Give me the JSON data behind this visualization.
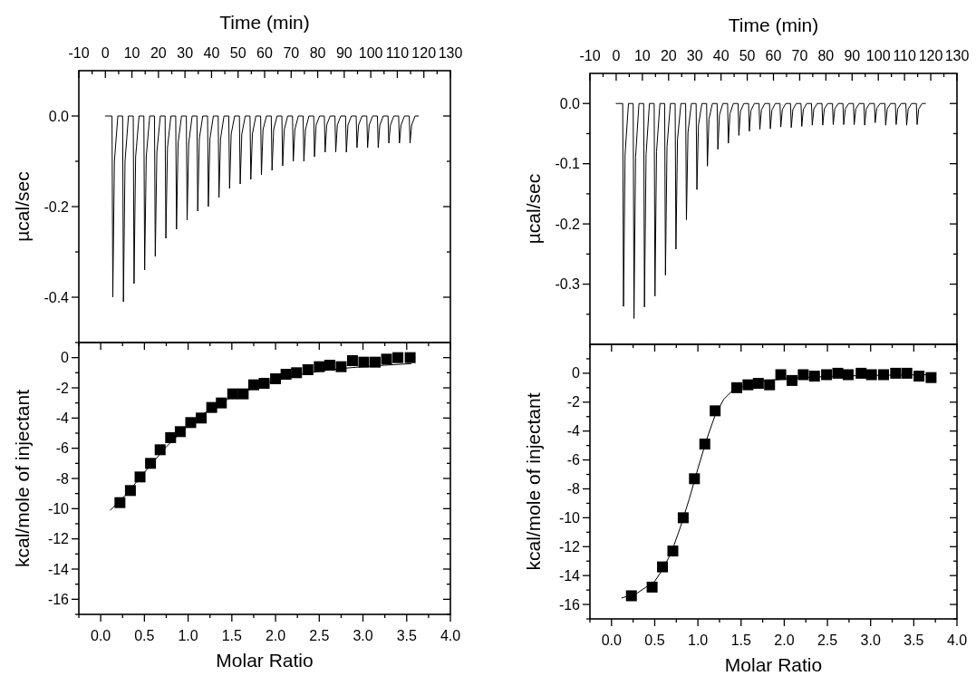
{
  "chart_data": [
    {
      "type": "line",
      "xlabel": "Time (min)",
      "ylabel": "µcal/sec",
      "xlim": [
        -10,
        130
      ],
      "ylim": [
        -0.5,
        0.1
      ],
      "xticks": [
        -10,
        {
          "value": -5,
          "label": null
        },
        0,
        {
          "value": 5,
          "label": null
        },
        10,
        {
          "value": 15,
          "label": null
        },
        20,
        {
          "value": 25,
          "label": null
        },
        30,
        {
          "value": 35,
          "label": null
        },
        40,
        {
          "value": 45,
          "label": null
        },
        50,
        {
          "value": 55,
          "label": null
        },
        60,
        {
          "value": 65,
          "label": null
        },
        70,
        {
          "value": 75,
          "label": null
        },
        80,
        {
          "value": 85,
          "label": null
        },
        90,
        {
          "value": 95,
          "label": null
        },
        100,
        {
          "value": 105,
          "label": null
        },
        110,
        {
          "value": 115,
          "label": null
        },
        120,
        {
          "value": 125,
          "label": null
        },
        130
      ],
      "yticks": [
        {
          "value": -0.5,
          "label": null
        },
        {
          "value": -0.4,
          "label": "-0.4"
        },
        {
          "value": -0.3,
          "label": null
        },
        {
          "value": -0.2,
          "label": "-0.2"
        },
        {
          "value": -0.1,
          "label": null
        },
        {
          "value": 0,
          "label": "0.0"
        }
      ],
      "series": [
        {
          "color": "#000000",
          "x": [
            0,
            2.5,
            2.8,
            3.4,
            4.7,
            6.5,
            6.8,
            7.4,
            8.7,
            10.5,
            10.8,
            11.4,
            12.7,
            14.5,
            14.8,
            15.4,
            16.7,
            18.5,
            18.8,
            19.4,
            20.7,
            22.5,
            22.8,
            23.4,
            24.7,
            26.5,
            26.8,
            27.4,
            28.7,
            30.5,
            30.8,
            31.4,
            32.7,
            34.5,
            34.8,
            35.4,
            36.7,
            38.5,
            38.8,
            39.4,
            40.7,
            42.5,
            42.8,
            43.4,
            44.7,
            46.5,
            46.8,
            47.4,
            48.7,
            50.5,
            50.8,
            51.4,
            52.7,
            54.5,
            54.8,
            55.4,
            56.7,
            58.5,
            58.8,
            59.4,
            60.7,
            62.5,
            62.8,
            63.4,
            64.7,
            66.5,
            66.8,
            67.4,
            68.7,
            70.5,
            70.8,
            71.4,
            72.7,
            74.5,
            74.8,
            75.4,
            76.7,
            78.5,
            78.8,
            79.4,
            80.7,
            82.5,
            82.8,
            83.4,
            84.7,
            86.5,
            86.8,
            87.4,
            88.7,
            90.5,
            90.8,
            91.4,
            92.7,
            94.5,
            94.8,
            95.4,
            96.7,
            98.5,
            98.8,
            99.4,
            100.7,
            102.5,
            102.8,
            103.4,
            104.7,
            106.5,
            106.8,
            107.4,
            108.7,
            110.5,
            110.8,
            111.4,
            112.7,
            114.5,
            114.8,
            115.4,
            116.7,
            118
          ],
          "values": [
            0,
            0,
            -0.4,
            -0.1,
            0,
            0,
            -0.41,
            -0.1,
            0,
            0,
            -0.37,
            -0.09,
            0,
            0,
            -0.34,
            -0.09,
            0,
            0,
            -0.31,
            -0.08,
            0,
            0,
            -0.27,
            -0.07,
            0,
            0,
            -0.25,
            -0.06,
            0,
            0,
            -0.23,
            -0.06,
            0,
            0,
            -0.21,
            -0.05,
            0,
            0,
            -0.2,
            -0.05,
            0,
            0,
            -0.18,
            -0.05,
            0,
            0,
            -0.16,
            -0.04,
            0,
            0,
            -0.15,
            -0.04,
            0,
            0,
            -0.14,
            -0.04,
            0,
            0,
            -0.13,
            -0.03,
            0,
            0,
            -0.12,
            -0.03,
            0,
            0,
            -0.11,
            -0.03,
            0,
            0,
            -0.1,
            -0.03,
            0,
            0,
            -0.1,
            -0.03,
            0,
            0,
            -0.09,
            -0.02,
            0,
            0,
            -0.08,
            -0.02,
            0,
            0,
            -0.08,
            -0.02,
            0,
            0,
            -0.08,
            -0.02,
            0,
            0,
            -0.07,
            -0.02,
            0,
            0,
            -0.07,
            -0.02,
            0,
            0,
            -0.07,
            -0.02,
            0,
            0,
            -0.06,
            -0.02,
            0,
            0,
            -0.06,
            -0.02,
            0,
            0,
            -0.06,
            -0.02,
            0,
            0
          ]
        }
      ]
    },
    {
      "type": "line",
      "xlabel": "Time (min)",
      "ylabel": "µcal/sec",
      "xlim": [
        -10,
        130
      ],
      "ylim": [
        -0.4,
        0.05
      ],
      "xticks": [
        -10,
        {
          "value": -5,
          "label": null
        },
        0,
        {
          "value": 5,
          "label": null
        },
        10,
        {
          "value": 15,
          "label": null
        },
        20,
        {
          "value": 25,
          "label": null
        },
        30,
        {
          "value": 35,
          "label": null
        },
        40,
        {
          "value": 45,
          "label": null
        },
        50,
        {
          "value": 55,
          "label": null
        },
        60,
        {
          "value": 65,
          "label": null
        },
        70,
        {
          "value": 75,
          "label": null
        },
        80,
        {
          "value": 85,
          "label": null
        },
        90,
        {
          "value": 95,
          "label": null
        },
        100,
        {
          "value": 105,
          "label": null
        },
        110,
        {
          "value": 115,
          "label": null
        },
        120,
        {
          "value": 125,
          "label": null
        },
        130
      ],
      "yticks": [
        {
          "value": -0.35,
          "label": null
        },
        {
          "value": -0.3,
          "label": "-0.3"
        },
        {
          "value": -0.25,
          "label": null
        },
        {
          "value": -0.2,
          "label": "-0.2"
        },
        {
          "value": -0.15,
          "label": null
        },
        {
          "value": -0.1,
          "label": "-0.1"
        },
        {
          "value": -0.05,
          "label": null
        },
        {
          "value": 0,
          "label": "0.0"
        }
      ],
      "series": [
        {
          "color": "#000000",
          "x": [
            0,
            2.5,
            2.8,
            3.4,
            4.7,
            6.5,
            6.8,
            7.4,
            8.7,
            10.5,
            10.8,
            11.4,
            12.7,
            14.5,
            14.8,
            15.4,
            16.7,
            18.5,
            18.8,
            19.4,
            20.7,
            22.5,
            22.8,
            23.4,
            24.7,
            26.5,
            26.8,
            27.4,
            28.7,
            30.5,
            30.8,
            31.4,
            32.7,
            34.5,
            34.8,
            35.4,
            36.7,
            38.5,
            38.8,
            39.4,
            40.7,
            42.5,
            42.8,
            43.4,
            44.7,
            46.5,
            46.8,
            47.4,
            48.7,
            50.5,
            50.8,
            51.4,
            52.7,
            54.5,
            54.8,
            55.4,
            56.7,
            58.5,
            58.8,
            59.4,
            60.7,
            62.5,
            62.8,
            63.4,
            64.7,
            66.5,
            66.8,
            67.4,
            68.7,
            70.5,
            70.8,
            71.4,
            72.7,
            74.5,
            74.8,
            75.4,
            76.7,
            78.5,
            78.8,
            79.4,
            80.7,
            82.5,
            82.8,
            83.4,
            84.7,
            86.5,
            86.8,
            87.4,
            88.7,
            90.5,
            90.8,
            91.4,
            92.7,
            94.5,
            94.8,
            95.4,
            96.7,
            98.5,
            98.8,
            99.4,
            100.7,
            102.5,
            102.8,
            103.4,
            104.7,
            106.5,
            106.8,
            107.4,
            108.7,
            110.5,
            110.8,
            111.4,
            112.7,
            114.5,
            114.8,
            115.4,
            116.7,
            118
          ],
          "values": [
            0,
            0,
            -0.337,
            -0.084,
            0,
            0,
            -0.357,
            -0.089,
            0,
            0,
            -0.338,
            -0.085,
            0,
            0,
            -0.32,
            -0.08,
            0,
            0,
            -0.285,
            -0.071,
            0,
            0,
            -0.242,
            -0.06,
            0,
            0,
            -0.193,
            -0.048,
            0,
            0,
            -0.143,
            -0.036,
            0,
            0,
            -0.104,
            -0.026,
            0,
            0,
            -0.076,
            -0.019,
            0,
            0,
            -0.066,
            -0.017,
            0,
            0,
            -0.053,
            -0.013,
            0,
            0,
            -0.046,
            -0.012,
            0,
            0,
            -0.043,
            -0.011,
            0,
            0,
            -0.042,
            -0.011,
            0,
            0,
            -0.039,
            -0.01,
            0,
            0,
            -0.04,
            -0.01,
            0,
            0,
            -0.038,
            -0.01,
            0,
            0,
            -0.036,
            -0.009,
            0,
            0,
            -0.036,
            -0.009,
            0,
            0,
            -0.035,
            -0.009,
            0,
            0,
            -0.035,
            -0.009,
            0,
            0,
            -0.035,
            -0.009,
            0,
            0,
            -0.036,
            -0.009,
            0,
            0,
            -0.032,
            -0.008,
            0,
            0,
            -0.036,
            -0.009,
            0,
            0,
            -0.035,
            -0.009,
            0,
            0,
            -0.036,
            -0.009,
            0,
            0,
            -0.035,
            -0.009,
            0,
            0
          ]
        }
      ]
    },
    {
      "type": "scatter",
      "xlabel": "Molar Ratio",
      "ylabel": "kcal/mole of injectant",
      "xlim": [
        -0.25,
        4
      ],
      "ylim": [
        -17,
        1
      ],
      "xticks": [
        {
          "value": -0.25,
          "label": null
        },
        {
          "value": 0,
          "label": "0.0"
        },
        {
          "value": 0.25,
          "label": null
        },
        0.5,
        {
          "value": 0.75,
          "label": null
        },
        {
          "value": 1,
          "label": "1.0"
        },
        {
          "value": 1.25,
          "label": null
        },
        1.5,
        {
          "value": 1.75,
          "label": null
        },
        {
          "value": 2,
          "label": "2.0"
        },
        {
          "value": 2.25,
          "label": null
        },
        2.5,
        {
          "value": 2.75,
          "label": null
        },
        {
          "value": 3,
          "label": "3.0"
        },
        {
          "value": 3.25,
          "label": null
        },
        3.5,
        {
          "value": 3.75,
          "label": null
        },
        {
          "value": 4,
          "label": "4.0"
        }
      ],
      "yticks": [
        {
          "value": -17,
          "label": null
        },
        -16,
        {
          "value": -15,
          "label": null
        },
        -14,
        {
          "value": -13,
          "label": null
        },
        -12,
        {
          "value": -11,
          "label": null
        },
        -10,
        {
          "value": -9,
          "label": null
        },
        -8,
        {
          "value": -7,
          "label": null
        },
        -6,
        {
          "value": -5,
          "label": null
        },
        -4,
        {
          "value": -3,
          "label": null
        },
        -2,
        {
          "value": -1,
          "label": null
        },
        0
      ],
      "series": [
        {
          "marker": "square",
          "color": "#000000",
          "x": [
            0.22,
            0.34,
            0.45,
            0.57,
            0.68,
            0.8,
            0.91,
            1.03,
            1.15,
            1.27,
            1.38,
            1.51,
            1.63,
            1.75,
            1.87,
            2.0,
            2.12,
            2.24,
            2.37,
            2.5,
            2.62,
            2.75,
            2.88,
            3.01,
            3.14,
            3.27,
            3.4,
            3.54
          ],
          "values": [
            -9.6,
            -8.8,
            -7.9,
            -7.0,
            -6.1,
            -5.3,
            -4.9,
            -4.3,
            -4.0,
            -3.3,
            -3.0,
            -2.4,
            -2.4,
            -1.8,
            -1.7,
            -1.4,
            -1.1,
            -1.0,
            -0.8,
            -0.6,
            -0.5,
            -0.6,
            -0.2,
            -0.3,
            -0.3,
            -0.1,
            0.0,
            0.0
          ]
        },
        {
          "type": "line",
          "color": "#000000",
          "x": [
            0.11,
            0.3,
            0.5,
            0.75,
            1.0,
            1.25,
            1.5,
            1.75,
            2.0,
            2.25,
            2.5,
            2.75,
            3.0,
            3.25,
            3.55
          ],
          "values": [
            -10.1,
            -9.0,
            -7.6,
            -5.9,
            -4.5,
            -3.4,
            -2.6,
            -2.0,
            -1.5,
            -1.15,
            -0.9,
            -0.72,
            -0.6,
            -0.5,
            -0.4
          ]
        }
      ]
    },
    {
      "type": "scatter",
      "xlabel": "Molar Ratio",
      "ylabel": "kcal/mole of injectant",
      "xlim": [
        -0.25,
        4
      ],
      "ylim": [
        -17,
        2
      ],
      "xticks": [
        {
          "value": -0.25,
          "label": null
        },
        {
          "value": 0,
          "label": "0.0"
        },
        {
          "value": 0.25,
          "label": null
        },
        0.5,
        {
          "value": 0.75,
          "label": null
        },
        {
          "value": 1,
          "label": "1.0"
        },
        {
          "value": 1.25,
          "label": null
        },
        1.5,
        {
          "value": 1.75,
          "label": null
        },
        {
          "value": 2,
          "label": "2.0"
        },
        {
          "value": 2.25,
          "label": null
        },
        2.5,
        {
          "value": 2.75,
          "label": null
        },
        {
          "value": 3,
          "label": "3.0"
        },
        {
          "value": 3.25,
          "label": null
        },
        3.5,
        {
          "value": 3.75,
          "label": null
        },
        {
          "value": 4,
          "label": "4.0"
        }
      ],
      "yticks": [
        {
          "value": -17,
          "label": null
        },
        -16,
        {
          "value": -15,
          "label": null
        },
        -14,
        {
          "value": -13,
          "label": null
        },
        -12,
        {
          "value": -11,
          "label": null
        },
        -10,
        {
          "value": -9,
          "label": null
        },
        -8,
        {
          "value": -7,
          "label": null
        },
        -6,
        {
          "value": -5,
          "label": null
        },
        -4,
        {
          "value": -3,
          "label": null
        },
        -2,
        {
          "value": -1,
          "label": null
        },
        0,
        {
          "value": 1,
          "label": null
        }
      ],
      "series": [
        {
          "marker": "square",
          "color": "#000000",
          "x": [
            0.23,
            0.47,
            0.59,
            0.71,
            0.83,
            0.96,
            1.08,
            1.2,
            1.45,
            1.58,
            1.7,
            1.83,
            1.96,
            2.09,
            2.22,
            2.35,
            2.49,
            2.62,
            2.74,
            2.89,
            3.01,
            3.15,
            3.29,
            3.42,
            3.56,
            3.7
          ],
          "values": [
            -15.4,
            -14.8,
            -13.4,
            -12.3,
            -10.0,
            -7.3,
            -4.9,
            -2.6,
            -1.0,
            -0.8,
            -0.7,
            -0.8,
            -0.1,
            -0.5,
            -0.1,
            -0.2,
            -0.1,
            0.0,
            -0.1,
            0.0,
            -0.1,
            -0.1,
            0.0,
            0.0,
            -0.2,
            -0.3
          ]
        },
        {
          "type": "line",
          "color": "#000000",
          "x": [
            0.12,
            0.3,
            0.5,
            0.6,
            0.7,
            0.8,
            0.9,
            1.0,
            1.1,
            1.2,
            1.3,
            1.4,
            1.6,
            1.8,
            2.2,
            2.6,
            3.0,
            3.7
          ],
          "values": [
            -15.55,
            -15.2,
            -14.4,
            -13.5,
            -12.3,
            -10.6,
            -8.7,
            -6.6,
            -4.6,
            -2.9,
            -1.8,
            -1.2,
            -0.75,
            -0.5,
            -0.3,
            -0.2,
            -0.15,
            -0.1
          ]
        }
      ]
    }
  ]
}
